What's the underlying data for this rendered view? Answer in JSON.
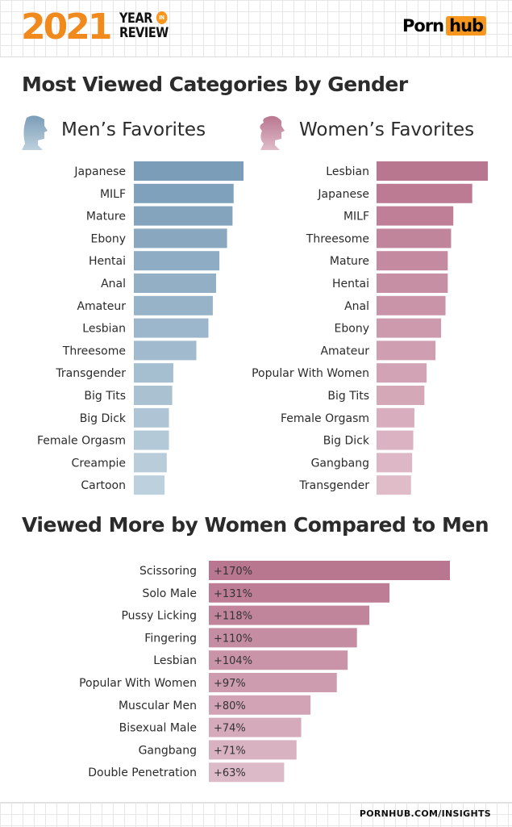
{
  "header": {
    "year": "2021",
    "year_in_review": [
      "YEAR",
      "IN",
      "REVIEW"
    ],
    "logo": [
      "Porn",
      "hub"
    ]
  },
  "title_1": "Most Viewed Categories by Gender",
  "men_title": "Men’s Favorites",
  "women_title": "Women’s Favorites",
  "title_2": "Viewed More by Women Compared to Men",
  "footer": "PORNHUB.COM/INSIGHTS",
  "chart_data": [
    {
      "type": "bar",
      "orientation": "horizontal",
      "name": "Men’s Favorites",
      "categories": [
        "Japanese",
        "MILF",
        "Mature",
        "Ebony",
        "Hentai",
        "Anal",
        "Amateur",
        "Lesbian",
        "Threesome",
        "Transgender",
        "Big Tits",
        "Big Dick",
        "Female Orgasm",
        "Creampie",
        "Cartoon"
      ],
      "values": [
        100,
        91,
        90,
        85,
        78,
        75,
        72,
        68,
        57,
        36,
        35,
        32,
        32,
        30,
        28
      ],
      "colors": [
        "#7b9db8",
        "#bdd0dd"
      ]
    },
    {
      "type": "bar",
      "orientation": "horizontal",
      "name": "Women’s Favorites",
      "categories": [
        "Lesbian",
        "Japanese",
        "MILF",
        "Threesome",
        "Mature",
        "Hentai",
        "Anal",
        "Ebony",
        "Amateur",
        "Popular With Women",
        "Big Tits",
        "Female Orgasm",
        "Big Dick",
        "Gangbang",
        "Transgender"
      ],
      "values": [
        100,
        86,
        69,
        67,
        64,
        64,
        62,
        58,
        53,
        45,
        43,
        34,
        33,
        32,
        31
      ],
      "colors": [
        "#b9768f",
        "#e0bcc9"
      ]
    },
    {
      "type": "bar",
      "orientation": "horizontal",
      "name": "Viewed More by Women Compared to Men",
      "categories": [
        "Scissoring",
        "Solo Male",
        "Pussy Licking",
        "Fingering",
        "Lesbian",
        "Popular With Women",
        "Muscular Men",
        "Bisexual Male",
        "Gangbang",
        "Double Penetration"
      ],
      "values": [
        170,
        131,
        118,
        110,
        104,
        97,
        80,
        74,
        71,
        63
      ],
      "labels": [
        "+170%",
        "+131%",
        "+118%",
        "+110%",
        "+104%",
        "+97%",
        "+80%",
        "+74%",
        "+71%",
        "+63%"
      ],
      "colors": [
        "#b9768f",
        "#ddbac7"
      ]
    }
  ]
}
